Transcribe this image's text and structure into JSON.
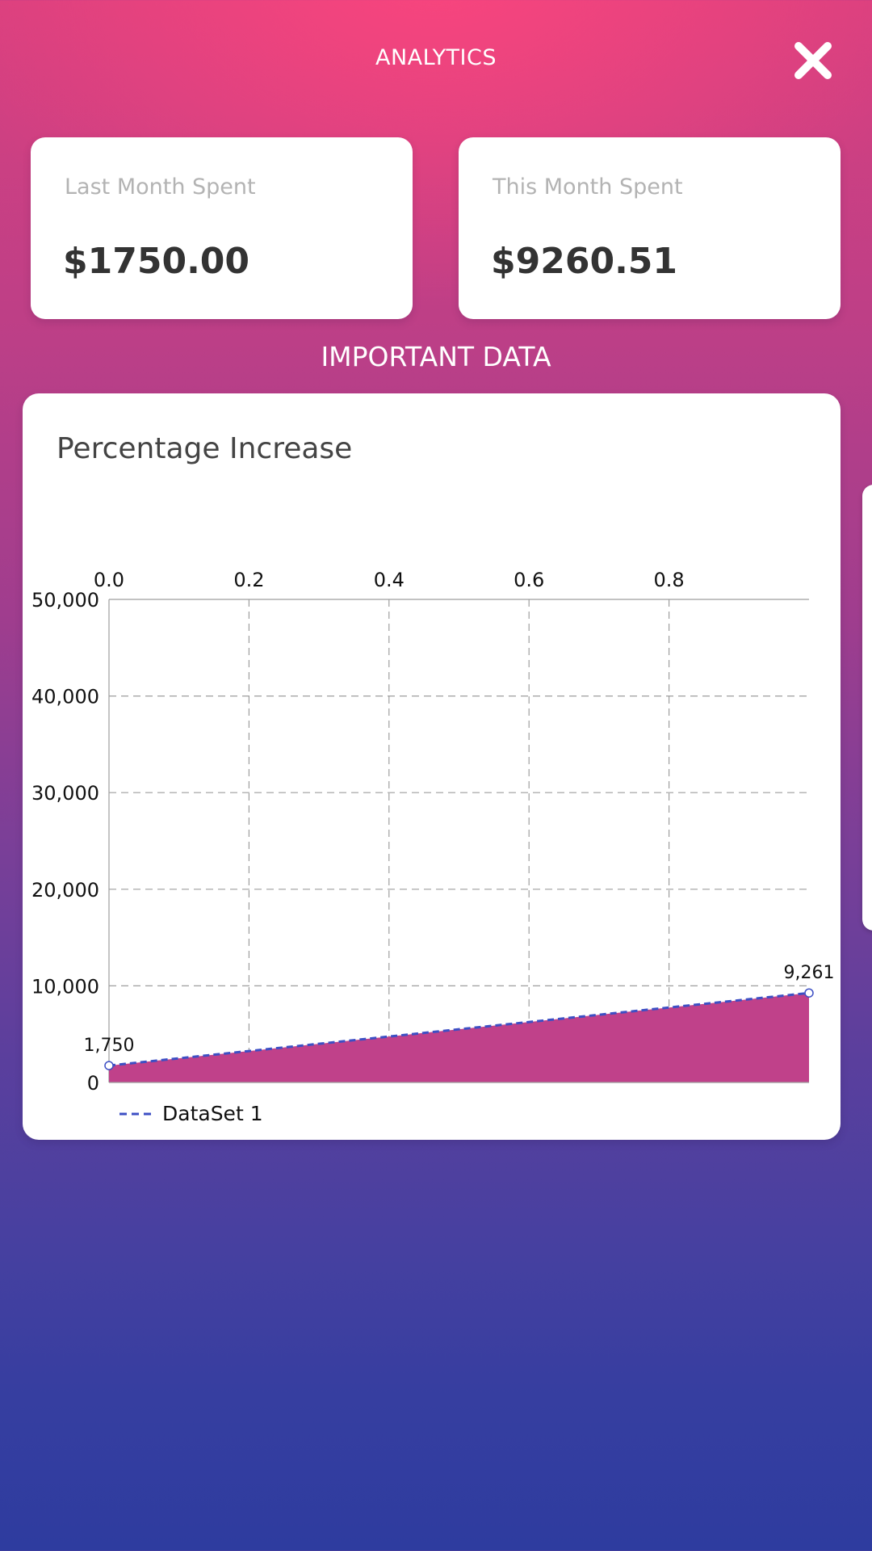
{
  "header": {
    "title": "ANALYTICS",
    "close_icon": "close-x-icon"
  },
  "stats": {
    "last_month": {
      "label": "Last Month Spent",
      "value": "$1750.00"
    },
    "this_month": {
      "label": "This Month Spent",
      "value": "$9260.51"
    }
  },
  "section": {
    "title": "IMPORTANT DATA"
  },
  "colors": {
    "fill": "#c0418a",
    "line": "#3d4fc4",
    "grid": "#9e9e9e",
    "gradient_top": "#ff4a7d",
    "gradient_bottom": "#2e3c9f"
  },
  "chart_data": {
    "type": "area",
    "title": "Percentage Increase",
    "x_axis_position": "top",
    "x": [
      0,
      1
    ],
    "series": [
      {
        "name": "DataSet 1",
        "values": [
          1750,
          9261
        ],
        "data_labels": [
          "1,750",
          "9,261"
        ],
        "line_style": "dashed"
      }
    ],
    "xlim": [
      0,
      1
    ],
    "ylim": [
      0,
      50000
    ],
    "x_ticks": [
      {
        "value": 0,
        "label": "0.0"
      },
      {
        "value": 0.2,
        "label": "0.2"
      },
      {
        "value": 0.4,
        "label": "0.4"
      },
      {
        "value": 0.6,
        "label": "0.6"
      },
      {
        "value": 0.8,
        "label": "0.8"
      }
    ],
    "y_ticks": [
      {
        "value": 0,
        "label": "0"
      },
      {
        "value": 10000,
        "label": "10,000"
      },
      {
        "value": 20000,
        "label": "20,000"
      },
      {
        "value": 30000,
        "label": "30,000"
      },
      {
        "value": 40000,
        "label": "40,000"
      },
      {
        "value": 50000,
        "label": "50,000"
      }
    ],
    "grid": true,
    "legend": "bottom-left"
  }
}
